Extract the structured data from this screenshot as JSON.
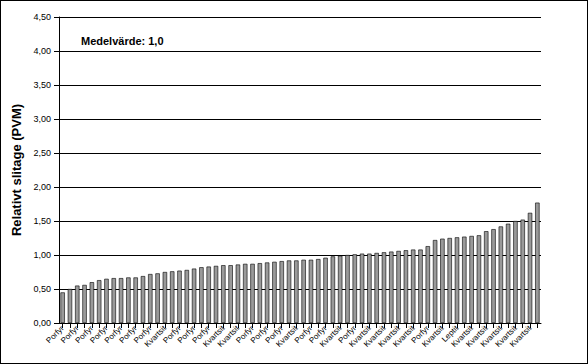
{
  "chart_data": {
    "type": "bar",
    "annotation": "Medelvärde: 1,0",
    "y_label": "Relativt slitage (PVM)",
    "categories": [
      "Porfyr",
      null,
      "Porfyr",
      null,
      "Porfyr",
      null,
      "Porfyr",
      null,
      "Porfyr",
      null,
      "Porfyr",
      null,
      "Porfyr",
      null,
      "Kvartsit",
      null,
      "Porfyr",
      null,
      "Porfyr",
      null,
      "Porfyr",
      null,
      "Kvartsit",
      null,
      "Kvartsit",
      null,
      "Porfyr",
      null,
      "Porfyr",
      null,
      "Porfyr",
      null,
      "Kvartsit",
      null,
      "Porfyr",
      null,
      "Porfyr",
      null,
      "Kvartsit",
      null,
      "Porfyr",
      null,
      "Kvartsit",
      null,
      "Kvartsit",
      null,
      "Kvartsit",
      null,
      "Kvartsit",
      null,
      "Porfyr",
      null,
      "Kvartsit",
      null,
      "Leptit",
      null,
      "Kvartsit",
      null,
      "Kvartsit",
      null,
      "Kvartsit",
      null,
      "Kvartsit",
      null,
      "Kvartsit",
      null
    ],
    "values": [
      0.45,
      0.5,
      0.55,
      0.56,
      0.6,
      0.63,
      0.65,
      0.66,
      0.66,
      0.67,
      0.67,
      0.69,
      0.72,
      0.73,
      0.75,
      0.76,
      0.77,
      0.78,
      0.8,
      0.82,
      0.83,
      0.84,
      0.85,
      0.85,
      0.86,
      0.87,
      0.87,
      0.88,
      0.89,
      0.9,
      0.91,
      0.92,
      0.92,
      0.93,
      0.93,
      0.94,
      0.96,
      0.98,
      0.99,
      1.0,
      1.01,
      1.02,
      1.02,
      1.03,
      1.04,
      1.05,
      1.06,
      1.07,
      1.08,
      1.08,
      1.13,
      1.22,
      1.24,
      1.25,
      1.26,
      1.27,
      1.28,
      1.29,
      1.35,
      1.38,
      1.42,
      1.46,
      1.5,
      1.52,
      1.62,
      1.77
    ],
    "color": "#9a9a9a",
    "ylim": [
      0,
      4.5
    ],
    "yticks": [
      {
        "value": 0,
        "label": "0,00"
      },
      {
        "value": 0.5,
        "label": "0,50"
      },
      {
        "value": 1,
        "label": "1,00"
      },
      {
        "value": 1.5,
        "label": "1,50"
      },
      {
        "value": 2,
        "label": "2,00"
      },
      {
        "value": 2.5,
        "label": "2,50"
      },
      {
        "value": 3,
        "label": "3,00"
      },
      {
        "value": 3.5,
        "label": "3,50"
      },
      {
        "value": 4,
        "label": "4,00"
      },
      {
        "value": 4.5,
        "label": "4,50"
      }
    ],
    "grid": true
  }
}
